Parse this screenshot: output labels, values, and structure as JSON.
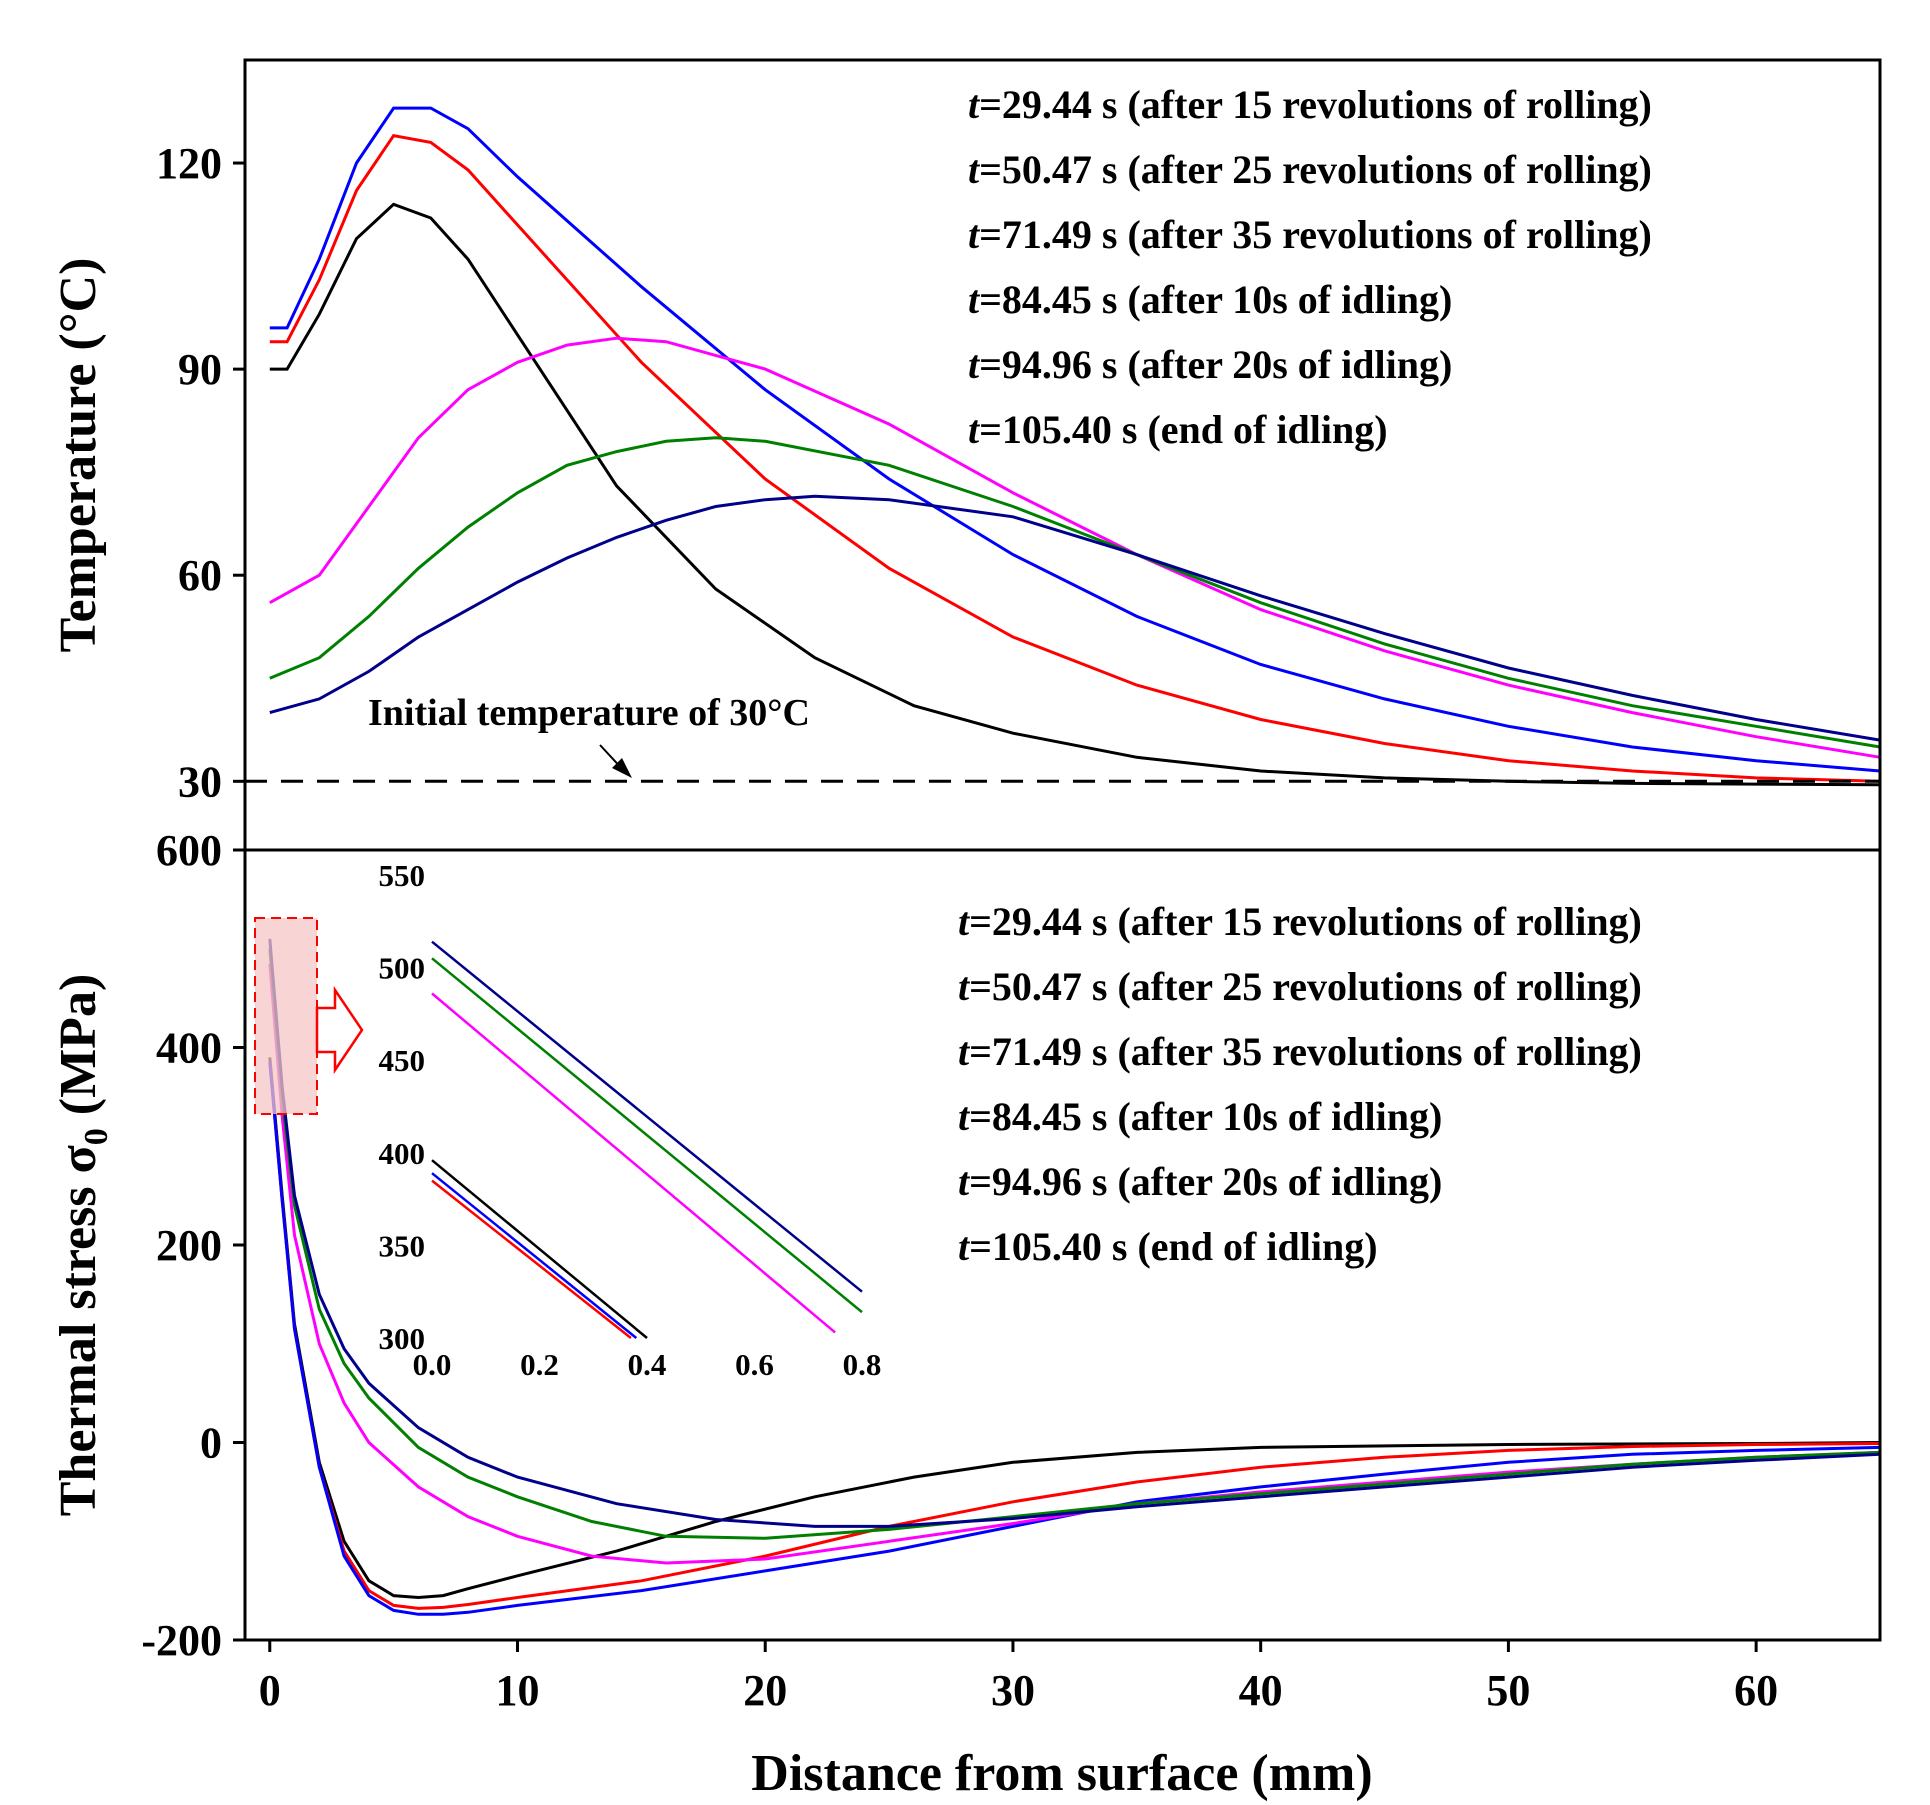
{
  "legend_prefix": "t",
  "chart_data": [
    {
      "type": "line",
      "panel": "top",
      "ylabel": "Temperature (°C)",
      "xlabel": "",
      "xlim": [
        -1,
        65
      ],
      "ylim": [
        20,
        135
      ],
      "yticks": [
        30,
        60,
        90,
        120
      ],
      "annotation": "Initial temperature of 30°C",
      "reference_line": {
        "y": 30,
        "style": "dashed",
        "color": "#000000"
      },
      "series": [
        {
          "name": "t=29.44 s (after 15 revolutions of rolling)",
          "label_rest": "=29.44 s (after 15 revolutions of rolling)",
          "color": "#000000",
          "x": [
            0,
            0.7,
            2,
            3.5,
            5,
            6.5,
            8,
            10,
            14,
            18,
            22,
            26,
            30,
            35,
            40,
            45,
            50,
            55,
            60,
            65
          ],
          "y": [
            90,
            90,
            98,
            109,
            114,
            112,
            106,
            95,
            73,
            58,
            48,
            41,
            37,
            33.5,
            31.5,
            30.5,
            30,
            29.7,
            29.6,
            29.5
          ]
        },
        {
          "name": "t=50.47 s (after 25 revolutions of rolling)",
          "label_rest": "=50.47 s (after 25 revolutions of rolling)",
          "color": "#ff0000",
          "x": [
            0,
            0.7,
            2,
            3.5,
            5,
            6.5,
            8,
            10,
            15,
            20,
            25,
            30,
            35,
            40,
            45,
            50,
            55,
            60,
            65
          ],
          "y": [
            94,
            94,
            103,
            116,
            124,
            123,
            119,
            111,
            91,
            74,
            61,
            51,
            44,
            39,
            35.5,
            33,
            31.5,
            30.5,
            30
          ]
        },
        {
          "name": "t=71.49 s (after 35 revolutions of rolling)",
          "label_rest": "=71.49 s (after 35 revolutions of rolling)",
          "color": "#0000ff",
          "x": [
            0,
            0.7,
            2,
            3.5,
            5,
            6.5,
            8,
            10,
            15,
            20,
            25,
            30,
            35,
            40,
            45,
            50,
            55,
            60,
            65
          ],
          "y": [
            96,
            96,
            106,
            120,
            128,
            128,
            125,
            118,
            102,
            87,
            74,
            63,
            54,
            47,
            42,
            38,
            35,
            33,
            31.5
          ]
        },
        {
          "name": "t=84.45 s (after 10s of idling)",
          "label_rest": "=84.45 s (after 10s of idling)",
          "color": "#ff00ff",
          "x": [
            0,
            2,
            4,
            6,
            8,
            10,
            12,
            14,
            16,
            18,
            20,
            25,
            30,
            35,
            40,
            45,
            50,
            55,
            60,
            65
          ],
          "y": [
            56,
            60,
            70,
            80,
            87,
            91,
            93.5,
            94.5,
            94,
            92,
            90,
            82,
            72,
            63,
            55,
            49,
            44,
            40,
            36.5,
            33.5
          ]
        },
        {
          "name": "t=94.96 s (after 20s of idling)",
          "label_rest": "=94.96 s (after 20s of idling)",
          "color": "#008000",
          "x": [
            0,
            2,
            4,
            6,
            8,
            10,
            12,
            14,
            16,
            18,
            20,
            25,
            30,
            35,
            40,
            45,
            50,
            55,
            60,
            65
          ],
          "y": [
            45,
            48,
            54,
            61,
            67,
            72,
            76,
            78,
            79.5,
            80,
            79.5,
            76,
            70,
            63,
            56,
            50,
            45,
            41,
            38,
            35
          ]
        },
        {
          "name": "t=105.40 s (end of idling)",
          "label_rest": "=105.40 s (end of idling)",
          "color": "#00008b",
          "x": [
            0,
            2,
            4,
            6,
            8,
            10,
            12,
            14,
            16,
            18,
            20,
            22,
            25,
            30,
            35,
            40,
            45,
            50,
            55,
            60,
            65
          ],
          "y": [
            40,
            42,
            46,
            51,
            55,
            59,
            62.5,
            65.5,
            68,
            70,
            71,
            71.5,
            71,
            68.5,
            63,
            57,
            51.5,
            46.5,
            42.5,
            39,
            36
          ]
        }
      ]
    },
    {
      "type": "line",
      "panel": "bottom",
      "ylabel": "Thermal stress σ",
      "ylabel_sub": "0",
      "ylabel_unit": " (MPa)",
      "xlabel": "Distance from surface (mm)",
      "xlim": [
        -1,
        65
      ],
      "ylim": [
        -200,
        600
      ],
      "xticks": [
        0,
        10,
        20,
        30,
        40,
        50,
        60
      ],
      "yticks": [
        -200,
        0,
        200,
        400,
        600
      ],
      "series": [
        {
          "name": "t=29.44 s (after 15 revolutions of rolling)",
          "color": "#000000",
          "x": [
            0,
            0.5,
            1,
            2,
            3,
            4,
            5,
            6,
            7,
            8,
            10,
            14,
            18,
            22,
            26,
            30,
            35,
            40,
            50,
            60,
            65
          ],
          "y": [
            390,
            250,
            120,
            -20,
            -100,
            -140,
            -155,
            -157,
            -155,
            -148,
            -135,
            -110,
            -80,
            -55,
            -35,
            -20,
            -10,
            -5,
            -2,
            -1,
            0
          ]
        },
        {
          "name": "t=50.47 s (after 25 revolutions of rolling)",
          "color": "#ff0000",
          "x": [
            0,
            0.5,
            1,
            2,
            3,
            4,
            5,
            6,
            7,
            8,
            10,
            15,
            20,
            25,
            30,
            35,
            40,
            45,
            50,
            55,
            60,
            65
          ],
          "y": [
            385,
            245,
            115,
            -25,
            -110,
            -150,
            -165,
            -168,
            -167,
            -164,
            -157,
            -140,
            -115,
            -85,
            -60,
            -40,
            -25,
            -15,
            -8,
            -4,
            -2,
            -1
          ]
        },
        {
          "name": "t=71.49 s (after 35 revolutions of rolling)",
          "color": "#0000ff",
          "x": [
            0,
            0.5,
            1,
            2,
            3,
            4,
            5,
            6,
            7,
            8,
            10,
            15,
            20,
            25,
            30,
            35,
            40,
            45,
            50,
            55,
            60,
            65
          ],
          "y": [
            385,
            245,
            115,
            -25,
            -115,
            -155,
            -170,
            -174,
            -174,
            -172,
            -165,
            -150,
            -130,
            -110,
            -85,
            -60,
            -45,
            -32,
            -20,
            -12,
            -8,
            -5
          ]
        },
        {
          "name": "t=84.45 s (after 10s of idling)",
          "color": "#ff00ff",
          "x": [
            0,
            0.5,
            1,
            2,
            3,
            4,
            6,
            8,
            10,
            13,
            16,
            20,
            25,
            30,
            35,
            40,
            45,
            50,
            55,
            60,
            65
          ],
          "y": [
            485,
            330,
            210,
            100,
            40,
            0,
            -45,
            -75,
            -95,
            -115,
            -122,
            -118,
            -100,
            -82,
            -62,
            -50,
            -40,
            -30,
            -22,
            -15,
            -10
          ]
        },
        {
          "name": "t=94.96 s (after 20s of idling)",
          "color": "#008000",
          "x": [
            0,
            0.5,
            1,
            2,
            3,
            4,
            6,
            8,
            10,
            13,
            16,
            20,
            25,
            30,
            35,
            40,
            45,
            50,
            55,
            60,
            65
          ],
          "y": [
            500,
            350,
            240,
            135,
            80,
            45,
            -5,
            -35,
            -55,
            -80,
            -95,
            -97,
            -88,
            -75,
            -62,
            -52,
            -42,
            -32,
            -22,
            -15,
            -10
          ]
        },
        {
          "name": "t=105.40 s (end of idling)",
          "color": "#00008b",
          "x": [
            0,
            0.5,
            1,
            2,
            3,
            4,
            6,
            8,
            10,
            14,
            18,
            22,
            25,
            30,
            35,
            40,
            45,
            50,
            55,
            60,
            65
          ],
          "y": [
            510,
            360,
            250,
            150,
            95,
            60,
            15,
            -15,
            -35,
            -62,
            -78,
            -85,
            -85,
            -77,
            -65,
            -55,
            -45,
            -35,
            -25,
            -18,
            -12
          ]
        }
      ]
    },
    {
      "type": "line",
      "panel": "inset",
      "xlim": [
        0,
        0.8
      ],
      "ylim": [
        300,
        550
      ],
      "xticks": [
        "0.0",
        "0.2",
        "0.4",
        "0.6",
        "0.8"
      ],
      "yticks": [
        300,
        350,
        400,
        450,
        500,
        550
      ],
      "series": [
        {
          "name": "t=29.44 s (after 15 revolutions of rolling)",
          "color": "#000000",
          "x": [
            0,
            0.4
          ],
          "y": [
            396,
            300
          ]
        },
        {
          "name": "t=50.47 s (after 25 revolutions of rolling)",
          "color": "#ff0000",
          "x": [
            0,
            0.37
          ],
          "y": [
            385,
            300
          ]
        },
        {
          "name": "t=71.49 s (after 35 revolutions of rolling)",
          "color": "#0000ff",
          "x": [
            0,
            0.38
          ],
          "y": [
            389,
            300
          ]
        },
        {
          "name": "t=84.45 s (after 10s of idling)",
          "color": "#ff00ff",
          "x": [
            0,
            0.75
          ],
          "y": [
            486,
            303
          ]
        },
        {
          "name": "t=94.96 s (after 20s of idling)",
          "color": "#008000",
          "x": [
            0,
            0.8
          ],
          "y": [
            505,
            314
          ]
        },
        {
          "name": "t=105.40 s (end of idling)",
          "color": "#00008b",
          "x": [
            0,
            0.8
          ],
          "y": [
            514,
            325
          ]
        }
      ]
    }
  ]
}
